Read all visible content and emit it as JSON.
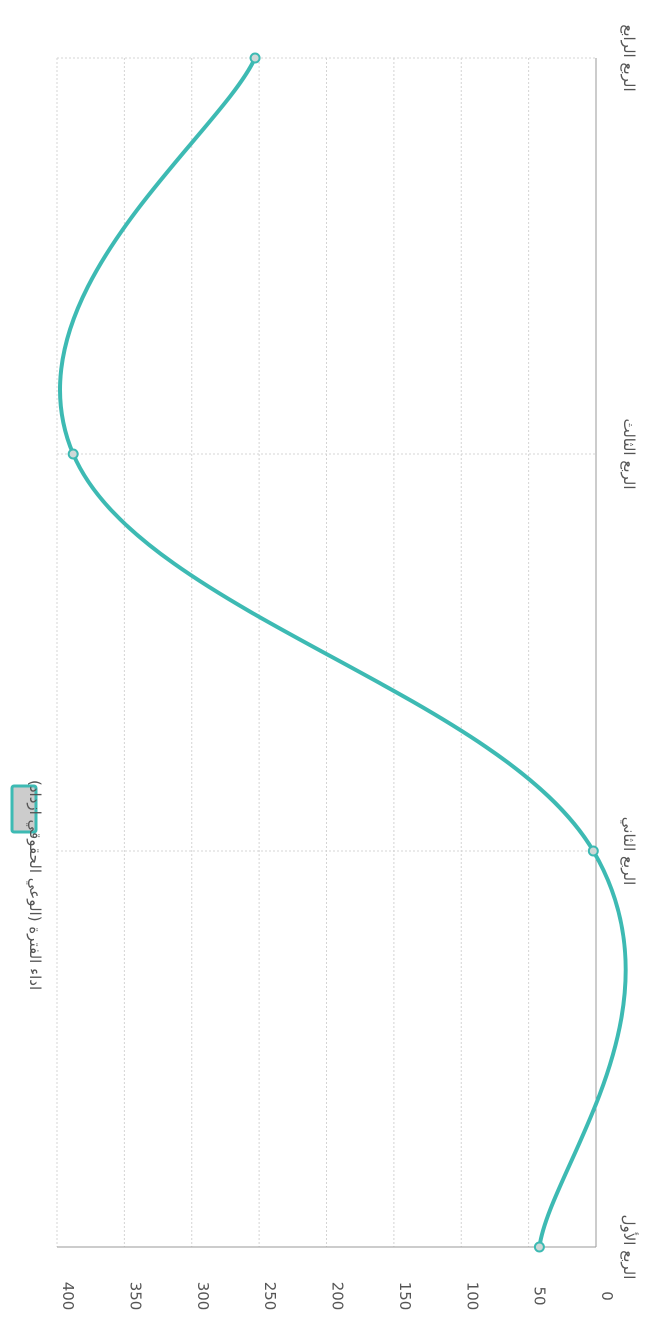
{
  "chart_data": {
    "type": "line",
    "orientation": "rotated-90-clockwise",
    "categories": [
      "الربع الأول",
      "الربع الثاني",
      "الربع الثالث",
      "الربع الرابع"
    ],
    "series": [
      {
        "name": "اداء الفترة (الوعي الحقوقي ازداد)",
        "values": [
          42,
          2,
          388,
          253
        ],
        "color": "#3dbab3"
      }
    ],
    "ylim": [
      0,
      400
    ],
    "yticks": [
      0,
      50,
      100,
      150,
      200,
      250,
      300,
      350,
      400
    ],
    "grid": true,
    "legend_position": "top",
    "legend_fill": "#cccccc"
  }
}
